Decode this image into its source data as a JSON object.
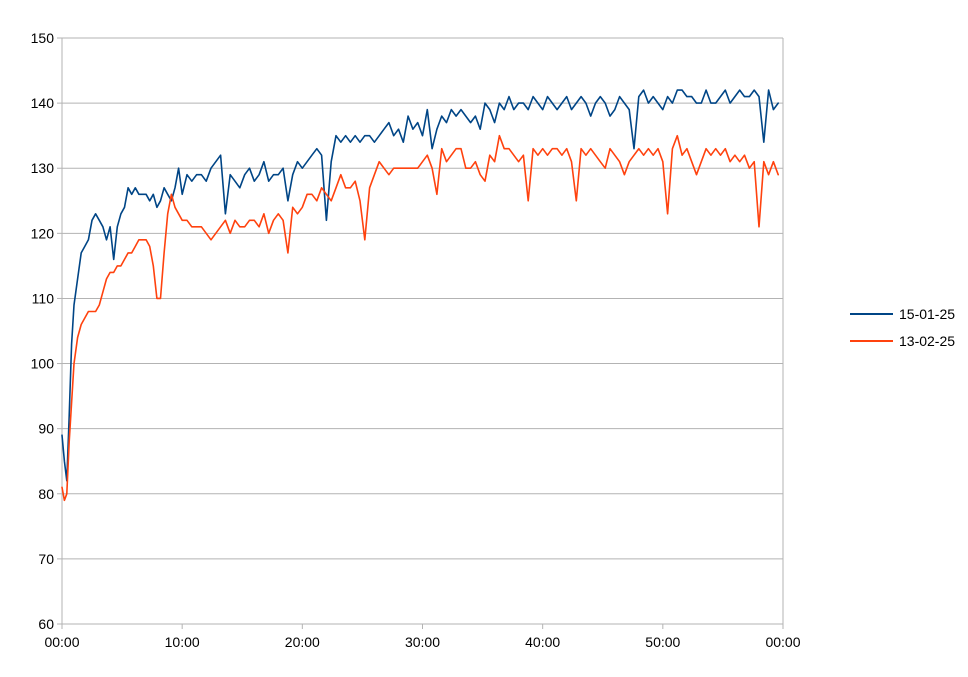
{
  "chart_data": {
    "type": "line",
    "title": "",
    "xlabel": "",
    "ylabel": "",
    "x_unit": "minutes",
    "xlim": [
      0,
      60
    ],
    "ylim": [
      60,
      150
    ],
    "y_ticks": [
      60,
      70,
      80,
      90,
      100,
      110,
      120,
      130,
      140,
      150
    ],
    "x_ticks": [
      0,
      10,
      20,
      30,
      40,
      50,
      60
    ],
    "x_tick_labels": [
      "00:00",
      "10:00",
      "20:00",
      "30:00",
      "40:00",
      "50:00",
      "00:00"
    ],
    "grid": "horizontal",
    "legend_position": "right",
    "series": [
      {
        "name": "15-01-25",
        "color": "#004586",
        "x": [
          0,
          0.2,
          0.4,
          0.6,
          0.8,
          1.0,
          1.3,
          1.6,
          1.9,
          2.2,
          2.5,
          2.8,
          3.1,
          3.4,
          3.7,
          4.0,
          4.3,
          4.6,
          4.9,
          5.2,
          5.5,
          5.8,
          6.1,
          6.4,
          6.7,
          7.0,
          7.3,
          7.6,
          7.9,
          8.2,
          8.5,
          8.8,
          9.1,
          9.4,
          9.7,
          10.0,
          10.4,
          10.8,
          11.2,
          11.6,
          12.0,
          12.4,
          12.8,
          13.2,
          13.6,
          14.0,
          14.4,
          14.8,
          15.2,
          15.6,
          16.0,
          16.4,
          16.8,
          17.2,
          17.6,
          18.0,
          18.4,
          18.8,
          19.2,
          19.6,
          20.0,
          20.4,
          20.8,
          21.2,
          21.6,
          22.0,
          22.4,
          22.8,
          23.2,
          23.6,
          24.0,
          24.4,
          24.8,
          25.2,
          25.6,
          26.0,
          26.4,
          26.8,
          27.2,
          27.6,
          28.0,
          28.4,
          28.8,
          29.2,
          29.6,
          30.0,
          30.4,
          30.8,
          31.2,
          31.6,
          32.0,
          32.4,
          32.8,
          33.2,
          33.6,
          34.0,
          34.4,
          34.8,
          35.2,
          35.6,
          36.0,
          36.4,
          36.8,
          37.2,
          37.6,
          38.0,
          38.4,
          38.8,
          39.2,
          39.6,
          40.0,
          40.4,
          40.8,
          41.2,
          41.6,
          42.0,
          42.4,
          42.8,
          43.2,
          43.6,
          44.0,
          44.4,
          44.8,
          45.2,
          45.6,
          46.0,
          46.4,
          46.8,
          47.2,
          47.6,
          48.0,
          48.4,
          48.8,
          49.2,
          49.6,
          50.0,
          50.4,
          50.8,
          51.2,
          51.6,
          52.0,
          52.4,
          52.8,
          53.2,
          53.6,
          54.0,
          54.4,
          54.8,
          55.2,
          55.6,
          56.0,
          56.4,
          56.8,
          57.2,
          57.6,
          58.0,
          58.4,
          58.8,
          59.2,
          59.6
        ],
        "values": [
          89,
          85,
          82,
          92,
          103,
          109,
          113,
          117,
          118,
          119,
          122,
          123,
          122,
          121,
          119,
          121,
          116,
          121,
          123,
          124,
          127,
          126,
          127,
          126,
          126,
          126,
          125,
          126,
          124,
          125,
          127,
          126,
          125,
          127,
          130,
          126,
          129,
          128,
          129,
          129,
          128,
          130,
          131,
          132,
          123,
          129,
          128,
          127,
          129,
          130,
          128,
          129,
          131,
          128,
          129,
          129,
          130,
          125,
          129,
          131,
          130,
          131,
          132,
          133,
          132,
          122,
          131,
          135,
          134,
          135,
          134,
          135,
          134,
          135,
          135,
          134,
          135,
          136,
          137,
          135,
          136,
          134,
          138,
          136,
          137,
          135,
          139,
          133,
          136,
          138,
          137,
          139,
          138,
          139,
          138,
          137,
          138,
          136,
          140,
          139,
          137,
          140,
          139,
          141,
          139,
          140,
          140,
          139,
          141,
          140,
          139,
          141,
          140,
          139,
          140,
          141,
          139,
          140,
          141,
          140,
          138,
          140,
          141,
          140,
          138,
          139,
          141,
          140,
          139,
          133,
          141,
          142,
          140,
          141,
          140,
          139,
          141,
          140,
          142,
          142,
          141,
          141,
          140,
          140,
          142,
          140,
          140,
          141,
          142,
          140,
          141,
          142,
          141,
          141,
          142,
          141,
          134,
          142,
          139,
          140
        ]
      },
      {
        "name": "13-02-25",
        "color": "#ff420e",
        "x": [
          0,
          0.2,
          0.4,
          0.6,
          0.8,
          1.0,
          1.3,
          1.6,
          1.9,
          2.2,
          2.5,
          2.8,
          3.1,
          3.4,
          3.7,
          4.0,
          4.3,
          4.6,
          4.9,
          5.2,
          5.5,
          5.8,
          6.1,
          6.4,
          6.7,
          7.0,
          7.3,
          7.6,
          7.9,
          8.2,
          8.5,
          8.8,
          9.1,
          9.4,
          9.7,
          10.0,
          10.4,
          10.8,
          11.2,
          11.6,
          12.0,
          12.4,
          12.8,
          13.2,
          13.6,
          14.0,
          14.4,
          14.8,
          15.2,
          15.6,
          16.0,
          16.4,
          16.8,
          17.2,
          17.6,
          18.0,
          18.4,
          18.8,
          19.2,
          19.6,
          20.0,
          20.4,
          20.8,
          21.2,
          21.6,
          22.0,
          22.4,
          22.8,
          23.2,
          23.6,
          24.0,
          24.4,
          24.8,
          25.2,
          25.6,
          26.0,
          26.4,
          26.8,
          27.2,
          27.6,
          28.0,
          28.4,
          28.8,
          29.2,
          29.6,
          30.0,
          30.4,
          30.8,
          31.2,
          31.6,
          32.0,
          32.4,
          32.8,
          33.2,
          33.6,
          34.0,
          34.4,
          34.8,
          35.2,
          35.6,
          36.0,
          36.4,
          36.8,
          37.2,
          37.6,
          38.0,
          38.4,
          38.8,
          39.2,
          39.6,
          40.0,
          40.4,
          40.8,
          41.2,
          41.6,
          42.0,
          42.4,
          42.8,
          43.2,
          43.6,
          44.0,
          44.4,
          44.8,
          45.2,
          45.6,
          46.0,
          46.4,
          46.8,
          47.2,
          47.6,
          48.0,
          48.4,
          48.8,
          49.2,
          49.6,
          50.0,
          50.4,
          50.8,
          51.2,
          51.6,
          52.0,
          52.4,
          52.8,
          53.2,
          53.6,
          54.0,
          54.4,
          54.8,
          55.2,
          55.6,
          56.0,
          56.4,
          56.8,
          57.2,
          57.6,
          58.0,
          58.4,
          58.8,
          59.2,
          59.6
        ],
        "values": [
          81,
          79,
          80,
          88,
          94,
          100,
          104,
          106,
          107,
          108,
          108,
          108,
          109,
          111,
          113,
          114,
          114,
          115,
          115,
          116,
          117,
          117,
          118,
          119,
          119,
          119,
          118,
          115,
          110,
          110,
          117,
          123,
          126,
          124,
          123,
          122,
          122,
          121,
          121,
          121,
          120,
          119,
          120,
          121,
          122,
          120,
          122,
          121,
          121,
          122,
          122,
          121,
          123,
          120,
          122,
          123,
          122,
          117,
          124,
          123,
          124,
          126,
          126,
          125,
          127,
          126,
          125,
          127,
          129,
          127,
          127,
          128,
          125,
          119,
          127,
          129,
          131,
          130,
          129,
          130,
          130,
          130,
          130,
          130,
          130,
          131,
          132,
          130,
          126,
          133,
          131,
          132,
          133,
          133,
          130,
          130,
          131,
          129,
          128,
          132,
          131,
          135,
          133,
          133,
          132,
          131,
          132,
          125,
          133,
          132,
          133,
          132,
          133,
          133,
          132,
          133,
          131,
          125,
          133,
          132,
          133,
          132,
          131,
          130,
          133,
          132,
          131,
          129,
          131,
          132,
          133,
          132,
          133,
          132,
          133,
          131,
          123,
          133,
          135,
          132,
          133,
          131,
          129,
          131,
          133,
          132,
          133,
          132,
          133,
          131,
          132,
          131,
          132,
          130,
          131,
          121,
          131,
          129,
          131,
          129
        ]
      }
    ]
  }
}
